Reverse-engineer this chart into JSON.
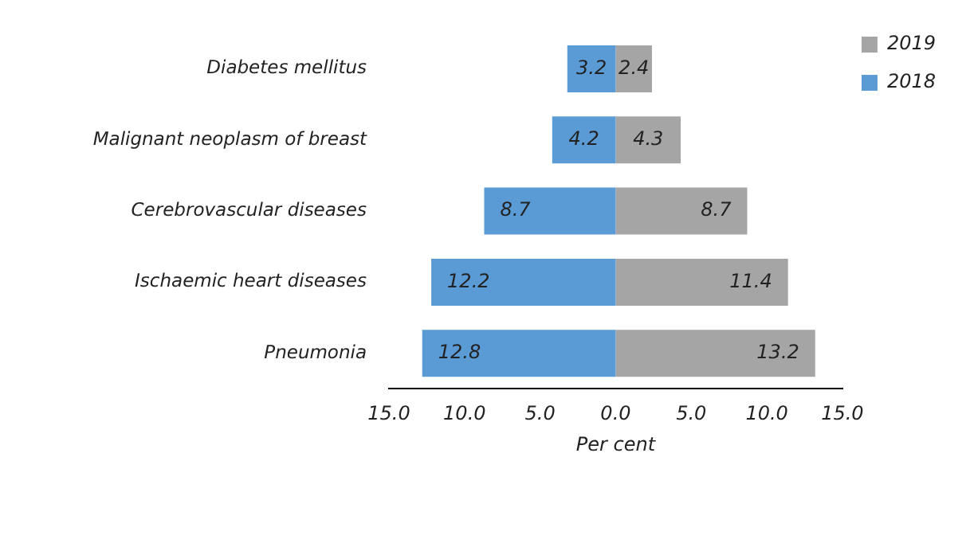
{
  "chart_data": {
    "type": "bar",
    "orientation": "horizontal",
    "xlabel": "Per cent",
    "categories": [
      "Diabetes mellitus",
      "Malignant neoplasm of breast",
      "Cerebrovascular diseases",
      "Ischaemic heart diseases",
      "Pneumonia"
    ],
    "series": [
      {
        "name": "2018",
        "color": "#5b9bd5",
        "base": [
          -3.2,
          -4.2,
          -8.7,
          -12.2,
          -12.8
        ],
        "values": [
          3.2,
          4.2,
          8.7,
          12.2,
          12.8
        ],
        "value_labels": [
          "3.2",
          "4.2",
          "8.7",
          "12.2",
          "12.8"
        ]
      },
      {
        "name": "2019",
        "color": "#a5a5a5",
        "values": [
          2.4,
          4.3,
          8.7,
          11.4,
          13.2
        ],
        "value_labels": [
          "2.4",
          "4.3",
          "8.7",
          "11.4",
          "13.2"
        ]
      }
    ],
    "xlim": [
      -15,
      15
    ],
    "xticks": [
      {
        "value": -15,
        "label": "15.0"
      },
      {
        "value": -10,
        "label": "10.0"
      },
      {
        "value": -5,
        "label": "5.0"
      },
      {
        "value": 0,
        "label": "0.0"
      },
      {
        "value": 5,
        "label": "5.0"
      },
      {
        "value": 10,
        "label": "10.0"
      },
      {
        "value": 15,
        "label": "15.0"
      }
    ],
    "grid": false,
    "legend": "top right"
  }
}
